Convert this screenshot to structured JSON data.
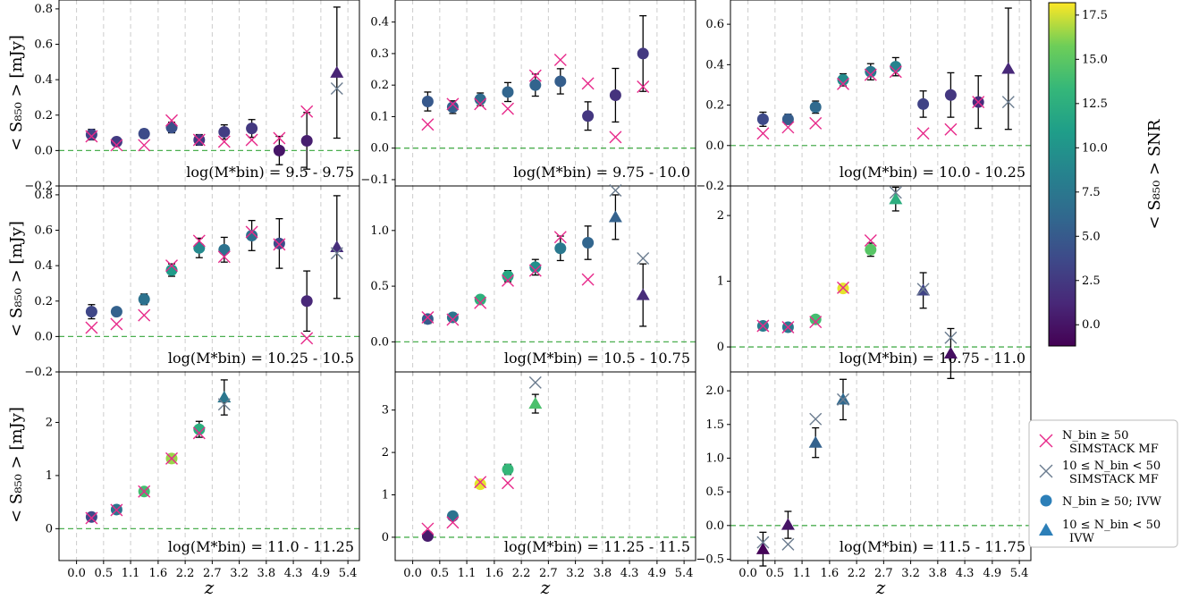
{
  "colors": {
    "simstack_many": "#e7298a",
    "simstack_few": "#6b7c8f",
    "zero_line": "#4caf50",
    "grid": "#cccccc",
    "errorbar": "#000000"
  },
  "layout": {
    "ylabel": "< S₈₅₀ >  [mJy]",
    "xlabel": "z",
    "x_ticks": [
      "0.0",
      "0.5",
      "1.1",
      "1.6",
      "2.2",
      "2.7",
      "3.2",
      "3.8",
      "4.3",
      "4.9",
      "5.4"
    ]
  },
  "colorbar": {
    "label": "< S₈₅₀ > SNR",
    "range": [
      -1.2,
      18.2
    ],
    "ticks": [
      "0.0",
      "2.5",
      "5.0",
      "7.5",
      "10.0",
      "12.5",
      "15.0",
      "17.5"
    ],
    "tick_values": [
      0,
      2.5,
      5,
      7.5,
      10,
      12.5,
      15,
      17.5
    ],
    "colormap": "viridis"
  },
  "legend": {
    "items": [
      {
        "marker": "x-pink",
        "line1": "N_bin ≥ 50",
        "line2": "SIMSTACK MF"
      },
      {
        "marker": "x-gray",
        "line1": "10 ≤ N_bin < 50",
        "line2": "SIMSTACK MF"
      },
      {
        "marker": "circle",
        "line1": "N_bin ≥ 50; IVW",
        "line2": ""
      },
      {
        "marker": "triangle",
        "line1": "10 ≤ N_bin < 50",
        "line2": "IVW"
      }
    ]
  },
  "chart_data": [
    {
      "type": "scatter",
      "label": "log(M*bin) = 9.5 - 9.75",
      "ylim": [
        -0.2,
        0.85
      ],
      "yticks": [
        -0.2,
        0.0,
        0.2,
        0.4,
        0.6,
        0.8
      ],
      "ytick_labels": [
        "−0.2",
        "0.0",
        "0.2",
        "0.4",
        "0.6",
        "0.8"
      ],
      "ivw": [
        {
          "z": 0.3,
          "y": 0.09,
          "err": 0.03,
          "snr": 3.2,
          "m": "o"
        },
        {
          "z": 0.8,
          "y": 0.05,
          "err": 0.02,
          "snr": 2.6,
          "m": "o"
        },
        {
          "z": 1.35,
          "y": 0.095,
          "err": 0.025,
          "snr": 3.8,
          "m": "o"
        },
        {
          "z": 1.9,
          "y": 0.13,
          "err": 0.03,
          "snr": 4.3,
          "m": "o"
        },
        {
          "z": 2.45,
          "y": 0.06,
          "err": 0.03,
          "snr": 2.5,
          "m": "o"
        },
        {
          "z": 2.95,
          "y": 0.105,
          "err": 0.04,
          "snr": 2.8,
          "m": "o"
        },
        {
          "z": 3.5,
          "y": 0.125,
          "err": 0.05,
          "snr": 2.4,
          "m": "o"
        },
        {
          "z": 4.05,
          "y": 0.0,
          "err": 0.08,
          "snr": 0.1,
          "m": "o"
        },
        {
          "z": 4.6,
          "y": 0.055,
          "err": 0.16,
          "snr": 0.6,
          "m": "o"
        },
        {
          "z": 5.2,
          "y": 0.44,
          "err": 0.37,
          "snr": 1.0,
          "m": "^"
        }
      ],
      "simstack": [
        {
          "z": 0.3,
          "y": 0.08,
          "m": "pink"
        },
        {
          "z": 0.8,
          "y": 0.03,
          "m": "pink"
        },
        {
          "z": 1.35,
          "y": 0.03,
          "m": "pink"
        },
        {
          "z": 1.9,
          "y": 0.17,
          "m": "pink"
        },
        {
          "z": 2.45,
          "y": 0.06,
          "m": "pink"
        },
        {
          "z": 2.95,
          "y": 0.05,
          "m": "pink"
        },
        {
          "z": 3.5,
          "y": 0.06,
          "m": "pink"
        },
        {
          "z": 4.05,
          "y": 0.07,
          "m": "pink"
        },
        {
          "z": 4.6,
          "y": 0.22,
          "m": "pink"
        },
        {
          "z": 5.2,
          "y": 0.35,
          "m": "gray"
        }
      ]
    },
    {
      "type": "scatter",
      "label": "log(M*bin) = 9.75 - 10.0",
      "ylim": [
        -0.12,
        0.47
      ],
      "yticks": [
        -0.1,
        0.0,
        0.1,
        0.2,
        0.3,
        0.4
      ],
      "ytick_labels": [
        "−0.1",
        "0.0",
        "0.1",
        "0.2",
        "0.3",
        "0.4"
      ],
      "ivw": [
        {
          "z": 0.3,
          "y": 0.148,
          "err": 0.03,
          "snr": 4.9,
          "m": "o"
        },
        {
          "z": 0.8,
          "y": 0.13,
          "err": 0.02,
          "snr": 5.4,
          "m": "o"
        },
        {
          "z": 1.35,
          "y": 0.155,
          "err": 0.02,
          "snr": 6.4,
          "m": "o"
        },
        {
          "z": 1.9,
          "y": 0.178,
          "err": 0.03,
          "snr": 5.9,
          "m": "o"
        },
        {
          "z": 2.45,
          "y": 0.2,
          "err": 0.035,
          "snr": 5.8,
          "m": "o"
        },
        {
          "z": 2.95,
          "y": 0.212,
          "err": 0.04,
          "snr": 5.3,
          "m": "o"
        },
        {
          "z": 3.5,
          "y": 0.102,
          "err": 0.045,
          "snr": 2.3,
          "m": "o"
        },
        {
          "z": 4.05,
          "y": 0.168,
          "err": 0.085,
          "snr": 2.0,
          "m": "o"
        },
        {
          "z": 4.6,
          "y": 0.3,
          "err": 0.12,
          "snr": 2.5,
          "m": "o"
        }
      ],
      "simstack": [
        {
          "z": 0.3,
          "y": 0.075,
          "m": "pink"
        },
        {
          "z": 0.8,
          "y": 0.14,
          "m": "pink"
        },
        {
          "z": 1.35,
          "y": 0.14,
          "m": "pink"
        },
        {
          "z": 1.9,
          "y": 0.125,
          "m": "pink"
        },
        {
          "z": 2.45,
          "y": 0.23,
          "m": "pink"
        },
        {
          "z": 2.95,
          "y": 0.28,
          "m": "pink"
        },
        {
          "z": 3.5,
          "y": 0.205,
          "m": "pink"
        },
        {
          "z": 4.05,
          "y": 0.035,
          "m": "pink"
        },
        {
          "z": 4.6,
          "y": 0.195,
          "m": "pink"
        }
      ]
    },
    {
      "type": "scatter",
      "label": "log(M*bin) = 10.0 - 10.25",
      "ylim": [
        -0.2,
        0.72
      ],
      "yticks": [
        -0.2,
        0.0,
        0.2,
        0.4,
        0.6
      ],
      "ytick_labels": [
        "−0.2",
        "0.0",
        "0.2",
        "0.4",
        "0.6"
      ],
      "ivw": [
        {
          "z": 0.3,
          "y": 0.13,
          "err": 0.035,
          "snr": 3.7,
          "m": "o"
        },
        {
          "z": 0.8,
          "y": 0.13,
          "err": 0.025,
          "snr": 5.2,
          "m": "o"
        },
        {
          "z": 1.35,
          "y": 0.19,
          "err": 0.03,
          "snr": 6.3,
          "m": "o"
        },
        {
          "z": 1.9,
          "y": 0.325,
          "err": 0.03,
          "snr": 9.3,
          "m": "o"
        },
        {
          "z": 2.45,
          "y": 0.365,
          "err": 0.04,
          "snr": 7.5,
          "m": "o"
        },
        {
          "z": 2.95,
          "y": 0.39,
          "err": 0.045,
          "snr": 8.6,
          "m": "o"
        },
        {
          "z": 3.5,
          "y": 0.205,
          "err": 0.065,
          "snr": 3.2,
          "m": "o"
        },
        {
          "z": 4.05,
          "y": 0.25,
          "err": 0.11,
          "snr": 2.3,
          "m": "o"
        },
        {
          "z": 4.6,
          "y": 0.215,
          "err": 0.13,
          "snr": 1.6,
          "m": "o"
        },
        {
          "z": 5.2,
          "y": 0.38,
          "err": 0.3,
          "snr": 1.3,
          "m": "^"
        }
      ],
      "simstack": [
        {
          "z": 0.3,
          "y": 0.06,
          "m": "pink"
        },
        {
          "z": 0.8,
          "y": 0.09,
          "m": "pink"
        },
        {
          "z": 1.35,
          "y": 0.11,
          "m": "pink"
        },
        {
          "z": 1.9,
          "y": 0.305,
          "m": "pink"
        },
        {
          "z": 2.45,
          "y": 0.35,
          "m": "pink"
        },
        {
          "z": 2.95,
          "y": 0.365,
          "m": "pink"
        },
        {
          "z": 3.5,
          "y": 0.06,
          "m": "pink"
        },
        {
          "z": 4.05,
          "y": 0.08,
          "m": "pink"
        },
        {
          "z": 4.6,
          "y": 0.215,
          "m": "pink"
        },
        {
          "z": 5.2,
          "y": 0.215,
          "m": "gray"
        }
      ]
    },
    {
      "type": "scatter",
      "label": "log(M*bin) = 10.25 - 10.5",
      "ylim": [
        -0.2,
        0.85
      ],
      "yticks": [
        -0.2,
        0.0,
        0.2,
        0.4,
        0.6,
        0.8
      ],
      "ytick_labels": [
        "−0.2",
        "0.0",
        "0.2",
        "0.4",
        "0.6",
        "0.8"
      ],
      "ivw": [
        {
          "z": 0.3,
          "y": 0.14,
          "err": 0.04,
          "snr": 3.5,
          "m": "o"
        },
        {
          "z": 0.8,
          "y": 0.14,
          "err": 0.02,
          "snr": 5.6,
          "m": "o"
        },
        {
          "z": 1.35,
          "y": 0.21,
          "err": 0.03,
          "snr": 7.0,
          "m": "o"
        },
        {
          "z": 1.9,
          "y": 0.375,
          "err": 0.035,
          "snr": 10.7,
          "m": "o"
        },
        {
          "z": 2.45,
          "y": 0.5,
          "err": 0.055,
          "snr": 9.1,
          "m": "o"
        },
        {
          "z": 2.95,
          "y": 0.49,
          "err": 0.07,
          "snr": 7.0,
          "m": "o"
        },
        {
          "z": 3.5,
          "y": 0.57,
          "err": 0.085,
          "snr": 6.7,
          "m": "o"
        },
        {
          "z": 4.05,
          "y": 0.525,
          "err": 0.14,
          "snr": 3.8,
          "m": "o"
        },
        {
          "z": 4.6,
          "y": 0.2,
          "err": 0.17,
          "snr": 1.2,
          "m": "o"
        },
        {
          "z": 5.2,
          "y": 0.505,
          "err": 0.29,
          "snr": 1.7,
          "m": "^"
        }
      ],
      "simstack": [
        {
          "z": 0.3,
          "y": 0.05,
          "m": "pink"
        },
        {
          "z": 0.8,
          "y": 0.07,
          "m": "pink"
        },
        {
          "z": 1.35,
          "y": 0.12,
          "m": "pink"
        },
        {
          "z": 1.9,
          "y": 0.4,
          "m": "pink"
        },
        {
          "z": 2.45,
          "y": 0.54,
          "m": "pink"
        },
        {
          "z": 2.95,
          "y": 0.45,
          "m": "pink"
        },
        {
          "z": 3.5,
          "y": 0.59,
          "m": "pink"
        },
        {
          "z": 4.05,
          "y": 0.52,
          "m": "pink"
        },
        {
          "z": 4.6,
          "y": -0.01,
          "m": "pink"
        },
        {
          "z": 5.2,
          "y": 0.47,
          "m": "gray"
        }
      ]
    },
    {
      "type": "scatter",
      "label": "log(M*bin) = 10.5 - 10.75",
      "ylim": [
        -0.27,
        1.4
      ],
      "yticks": [
        0.0,
        0.5,
        1.0
      ],
      "ytick_labels": [
        "0.0",
        "0.5",
        "1.0"
      ],
      "ivw": [
        {
          "z": 0.3,
          "y": 0.205,
          "err": 0.04,
          "snr": 5.1,
          "m": "o"
        },
        {
          "z": 0.8,
          "y": 0.22,
          "err": 0.03,
          "snr": 7.3,
          "m": "o"
        },
        {
          "z": 1.35,
          "y": 0.38,
          "err": 0.03,
          "snr": 12.7,
          "m": "o"
        },
        {
          "z": 1.9,
          "y": 0.59,
          "err": 0.05,
          "snr": 11.8,
          "m": "o"
        },
        {
          "z": 2.45,
          "y": 0.67,
          "err": 0.07,
          "snr": 9.6,
          "m": "o"
        },
        {
          "z": 2.95,
          "y": 0.84,
          "err": 0.11,
          "snr": 7.6,
          "m": "o"
        },
        {
          "z": 3.5,
          "y": 0.89,
          "err": 0.15,
          "snr": 5.9,
          "m": "o"
        },
        {
          "z": 4.05,
          "y": 1.12,
          "err": 0.2,
          "snr": 5.6,
          "m": "^"
        },
        {
          "z": 4.6,
          "y": 0.42,
          "err": 0.28,
          "snr": 1.5,
          "m": "^"
        }
      ],
      "simstack": [
        {
          "z": 0.3,
          "y": 0.22,
          "m": "pink"
        },
        {
          "z": 0.8,
          "y": 0.2,
          "m": "pink"
        },
        {
          "z": 1.35,
          "y": 0.35,
          "m": "pink"
        },
        {
          "z": 1.9,
          "y": 0.55,
          "m": "pink"
        },
        {
          "z": 2.45,
          "y": 0.64,
          "m": "pink"
        },
        {
          "z": 2.95,
          "y": 0.94,
          "m": "pink"
        },
        {
          "z": 3.5,
          "y": 0.56,
          "m": "pink"
        },
        {
          "z": 4.05,
          "y": 1.36,
          "m": "gray"
        },
        {
          "z": 4.6,
          "y": 0.75,
          "m": "gray"
        }
      ]
    },
    {
      "type": "scatter",
      "label": "log(M*bin) = 10.75 - 11.0",
      "ylim": [
        -0.38,
        2.45
      ],
      "yticks": [
        0,
        1,
        2
      ],
      "ytick_labels": [
        "0",
        "1",
        "2"
      ],
      "ivw": [
        {
          "z": 0.3,
          "y": 0.32,
          "err": 0.04,
          "snr": 7.9,
          "m": "o"
        },
        {
          "z": 0.8,
          "y": 0.3,
          "err": 0.04,
          "snr": 7.6,
          "m": "o"
        },
        {
          "z": 1.35,
          "y": 0.42,
          "err": 0.03,
          "snr": 14.0,
          "m": "o"
        },
        {
          "z": 1.9,
          "y": 0.89,
          "err": 0.05,
          "snr": 17.8,
          "m": "o"
        },
        {
          "z": 2.45,
          "y": 1.48,
          "err": 0.1,
          "snr": 14.8,
          "m": "o"
        },
        {
          "z": 2.95,
          "y": 2.25,
          "err": 0.18,
          "snr": 12.5,
          "m": "^"
        },
        {
          "z": 3.5,
          "y": 0.86,
          "err": 0.27,
          "snr": 3.2,
          "m": "^"
        },
        {
          "z": 4.05,
          "y": -0.1,
          "err": 0.38,
          "snr": -0.3,
          "m": "^"
        }
      ],
      "simstack": [
        {
          "z": 0.3,
          "y": 0.32,
          "m": "pink"
        },
        {
          "z": 0.8,
          "y": 0.3,
          "m": "pink"
        },
        {
          "z": 1.35,
          "y": 0.38,
          "m": "pink"
        },
        {
          "z": 1.9,
          "y": 0.9,
          "m": "pink"
        },
        {
          "z": 2.45,
          "y": 1.62,
          "m": "pink"
        },
        {
          "z": 2.95,
          "y": 2.35,
          "m": "gray"
        },
        {
          "z": 3.5,
          "y": 0.88,
          "m": "gray"
        },
        {
          "z": 4.05,
          "y": 0.14,
          "m": "gray"
        }
      ]
    },
    {
      "type": "scatter",
      "label": "log(M*bin) = 11.0 - 11.25",
      "ylim": [
        -0.6,
        2.95
      ],
      "yticks": [
        0,
        1,
        2
      ],
      "ytick_labels": [
        "0",
        "1",
        "2"
      ],
      "ivw": [
        {
          "z": 0.3,
          "y": 0.22,
          "err": 0.06,
          "snr": 3.7,
          "m": "o"
        },
        {
          "z": 0.8,
          "y": 0.36,
          "err": 0.05,
          "snr": 7.2,
          "m": "o"
        },
        {
          "z": 1.35,
          "y": 0.7,
          "err": 0.05,
          "snr": 14.0,
          "m": "o"
        },
        {
          "z": 1.9,
          "y": 1.32,
          "err": 0.08,
          "snr": 16.5,
          "m": "o"
        },
        {
          "z": 2.45,
          "y": 1.87,
          "err": 0.15,
          "snr": 12.5,
          "m": "o"
        },
        {
          "z": 2.95,
          "y": 2.47,
          "err": 0.33,
          "snr": 7.5,
          "m": "^"
        }
      ],
      "simstack": [
        {
          "z": 0.3,
          "y": 0.2,
          "m": "pink"
        },
        {
          "z": 0.8,
          "y": 0.35,
          "m": "pink"
        },
        {
          "z": 1.35,
          "y": 0.7,
          "m": "pink"
        },
        {
          "z": 1.9,
          "y": 1.32,
          "m": "pink"
        },
        {
          "z": 2.45,
          "y": 1.8,
          "m": "pink"
        },
        {
          "z": 2.95,
          "y": 2.34,
          "m": "gray"
        }
      ]
    },
    {
      "type": "scatter",
      "label": "log(M*bin) = 11.25 - 11.5",
      "ylim": [
        -0.55,
        3.9
      ],
      "yticks": [
        0,
        1,
        2,
        3
      ],
      "ytick_labels": [
        "0",
        "1",
        "2",
        "3"
      ],
      "ivw": [
        {
          "z": 0.3,
          "y": 0.03,
          "err": 0.08,
          "snr": 0.4,
          "m": "o"
        },
        {
          "z": 0.8,
          "y": 0.5,
          "err": 0.07,
          "snr": 7.1,
          "m": "o"
        },
        {
          "z": 1.35,
          "y": 1.25,
          "err": 0.07,
          "snr": 17.8,
          "m": "o"
        },
        {
          "z": 1.9,
          "y": 1.6,
          "err": 0.12,
          "snr": 13.3,
          "m": "o"
        },
        {
          "z": 2.45,
          "y": 3.15,
          "err": 0.22,
          "snr": 14.3,
          "m": "^"
        }
      ],
      "simstack": [
        {
          "z": 0.3,
          "y": 0.2,
          "m": "pink"
        },
        {
          "z": 0.8,
          "y": 0.35,
          "m": "pink"
        },
        {
          "z": 1.35,
          "y": 1.3,
          "m": "pink"
        },
        {
          "z": 1.9,
          "y": 1.28,
          "m": "pink"
        },
        {
          "z": 2.45,
          "y": 3.65,
          "m": "gray"
        }
      ]
    },
    {
      "type": "scatter",
      "label": "log(M*bin) = 11.5 - 11.75",
      "ylim": [
        -0.52,
        2.28
      ],
      "yticks": [
        -0.5,
        0.0,
        0.5,
        1.0,
        1.5,
        2.0
      ],
      "ytick_labels": [
        "−0.5",
        "0.0",
        "0.5",
        "1.0",
        "1.5",
        "2.0"
      ],
      "ivw": [
        {
          "z": 0.3,
          "y": -0.35,
          "err": 0.25,
          "snr": -1.0,
          "m": "^"
        },
        {
          "z": 0.8,
          "y": 0.01,
          "err": 0.2,
          "snr": 0.0,
          "m": "^"
        },
        {
          "z": 1.35,
          "y": 1.23,
          "err": 0.22,
          "snr": 5.6,
          "m": "^"
        },
        {
          "z": 1.9,
          "y": 1.87,
          "err": 0.3,
          "snr": 6.2,
          "m": "^"
        }
      ],
      "simstack": [
        {
          "z": 0.3,
          "y": -0.25,
          "m": "gray"
        },
        {
          "z": 0.8,
          "y": -0.28,
          "m": "gray"
        },
        {
          "z": 1.35,
          "y": 1.58,
          "m": "gray"
        },
        {
          "z": 1.9,
          "y": 1.87,
          "m": "gray"
        }
      ]
    }
  ]
}
